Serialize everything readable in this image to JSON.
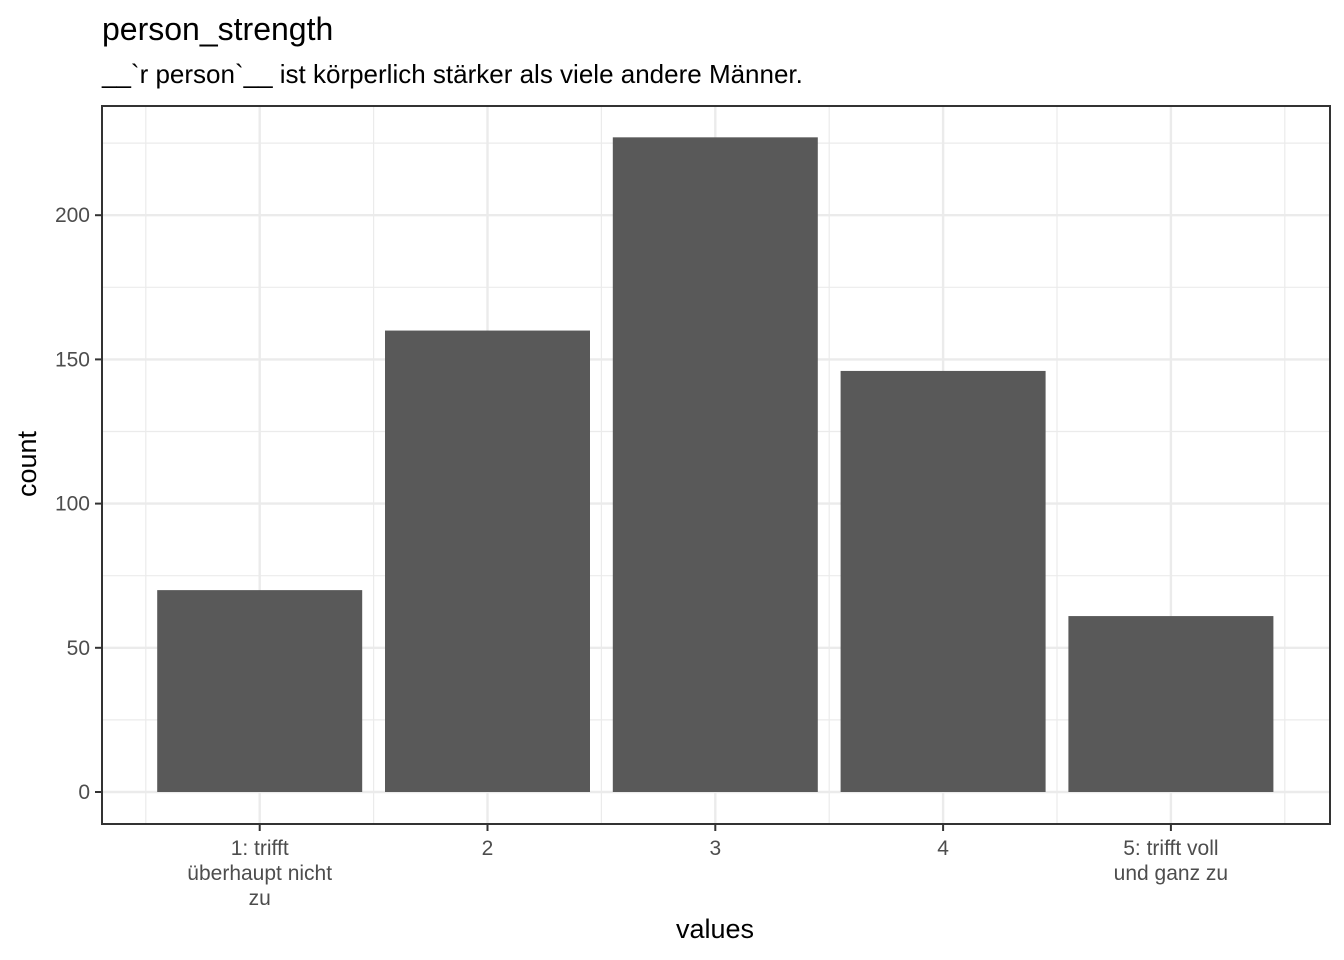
{
  "chart_data": {
    "type": "bar",
    "title": "person_strength",
    "subtitle": "__`r person`__ ist körperlich stärker als viele andere Männer.",
    "xlabel": "values",
    "ylabel": "count",
    "categories": [
      [
        "1: trifft",
        "überhaupt nicht",
        "zu"
      ],
      [
        "2"
      ],
      [
        "3"
      ],
      [
        "4"
      ],
      [
        "5: trifft voll",
        "und ganz zu"
      ]
    ],
    "values": [
      70,
      160,
      227,
      146,
      61
    ],
    "ylim": [
      0,
      238.35
    ],
    "yticks": [
      0,
      50,
      100,
      150,
      200
    ],
    "grid": true,
    "bar_color": "#595959",
    "grid_color": "#ebebeb",
    "panel_border_color": "#333333"
  }
}
